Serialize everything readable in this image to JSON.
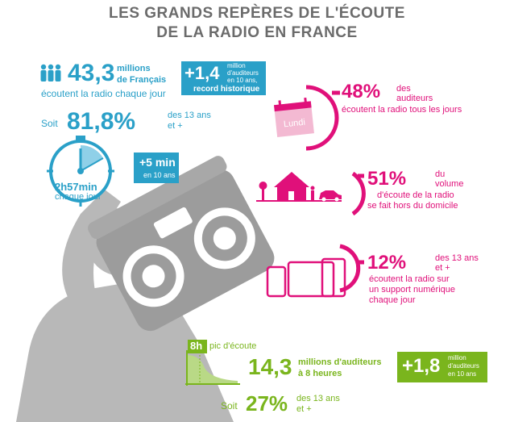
{
  "title": {
    "line1": "LES GRANDS REPÈRES DE L'ÉCOUTE",
    "line2": "DE LA RADIO EN FRANCE"
  },
  "daily": {
    "value": "43,3",
    "unit_line1": "millions",
    "unit_line2": "de Français",
    "caption": "écoutent la radio chaque jour"
  },
  "record": {
    "value": "+1,4",
    "line1": "million",
    "line2": "d'auditeurs",
    "line3": "en 10 ans,",
    "line4": "record historique"
  },
  "share": {
    "prefix": "Soit",
    "value": "81,8%",
    "line1": "des 13 ans",
    "line2": "et +"
  },
  "duration": {
    "value": "2h57min",
    "caption": "chaque jour",
    "gain_value": "+5 min",
    "gain_caption": "en 10 ans"
  },
  "everyday": {
    "calendar_label": "Lundi",
    "value": "48%",
    "line1": "des",
    "line2": "auditeurs",
    "line3": "écoutent la radio tous les jours"
  },
  "outside": {
    "value": "51%",
    "line1": "du",
    "line2": "volume",
    "line3": "d'écoute de la radio",
    "line4": "se fait hors du domicile"
  },
  "digital": {
    "value": "12%",
    "line1": "des 13 ans",
    "line2": "et +",
    "line3": "écoutent la radio sur",
    "line4": "un support numérique",
    "line5": "chaque jour"
  },
  "peak": {
    "hour": "8h",
    "label": "pic d'écoute",
    "value": "14,3",
    "line1": "millions d'auditeurs",
    "line2": "à 8 heures",
    "gain_value": "+1,8",
    "gain_line1": "million",
    "gain_line2": "d'auditeurs",
    "gain_line3": "en 10 ans"
  },
  "peak_share": {
    "prefix": "Soit",
    "value": "27%",
    "line1": "des 13 ans",
    "line2": "et +"
  },
  "colors": {
    "blue": "#2aa0c8",
    "pink": "#e0107a",
    "green": "#7ab51d",
    "grey": "#6b6b6b",
    "silhouette": "#b7b7b7"
  }
}
